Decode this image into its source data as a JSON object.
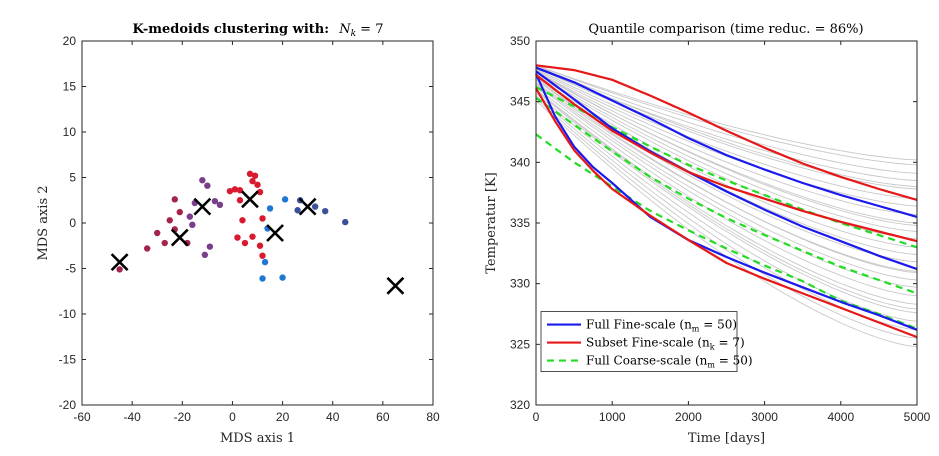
{
  "chart_data": [
    {
      "type": "scatter",
      "title": "K-medoids clustering with: N_k = 7",
      "title_text": "K-medoids clustering with:",
      "title_math": "N",
      "title_sub": "k",
      "title_tail": " = 7",
      "xlabel": "MDS axis 1",
      "ylabel": "MDS axis 2",
      "xlim": [
        -60,
        80
      ],
      "ylim": [
        -20,
        20
      ],
      "xticks": [
        -60,
        -40,
        -20,
        0,
        20,
        40,
        60,
        80
      ],
      "yticks": [
        -20,
        -15,
        -10,
        -5,
        0,
        5,
        10,
        15,
        20
      ],
      "grid": false,
      "colors": {
        "red": "#d91a2e",
        "crimson": "#a5244a",
        "purple": "#7a3d8c",
        "blue": "#1f77d4",
        "navy": "#3b4f9a",
        "darkmauve": "#8a3a6a",
        "marker_x": "#000000"
      },
      "points": [
        {
          "x": 7,
          "y": 5.4,
          "c": "red"
        },
        {
          "x": 9,
          "y": 5.2,
          "c": "red"
        },
        {
          "x": 8,
          "y": 4.6,
          "c": "red"
        },
        {
          "x": 10,
          "y": 4.2,
          "c": "red"
        },
        {
          "x": -1,
          "y": 3.5,
          "c": "red"
        },
        {
          "x": 1,
          "y": 3.7,
          "c": "red"
        },
        {
          "x": 3,
          "y": 3.6,
          "c": "red"
        },
        {
          "x": 11,
          "y": 3.4,
          "c": "red"
        },
        {
          "x": 3,
          "y": 2.5,
          "c": "red"
        },
        {
          "x": 4,
          "y": 0.3,
          "c": "red"
        },
        {
          "x": 12,
          "y": 0.5,
          "c": "red"
        },
        {
          "x": 2,
          "y": -1.6,
          "c": "red"
        },
        {
          "x": 5,
          "y": -2.2,
          "c": "red"
        },
        {
          "x": 8,
          "y": -1.5,
          "c": "red"
        },
        {
          "x": 11,
          "y": -2.5,
          "c": "red"
        },
        {
          "x": 12,
          "y": -3.6,
          "c": "red"
        },
        {
          "x": -23,
          "y": 2.6,
          "c": "crimson"
        },
        {
          "x": -21,
          "y": 1.2,
          "c": "crimson"
        },
        {
          "x": -25,
          "y": 0.3,
          "c": "crimson"
        },
        {
          "x": -23,
          "y": -0.7,
          "c": "crimson"
        },
        {
          "x": -30,
          "y": -1.1,
          "c": "crimson"
        },
        {
          "x": -27,
          "y": -2.2,
          "c": "crimson"
        },
        {
          "x": -34,
          "y": -2.8,
          "c": "crimson"
        },
        {
          "x": -18,
          "y": -2.2,
          "c": "crimson"
        },
        {
          "x": -45,
          "y": -5.1,
          "c": "crimson"
        },
        {
          "x": -12,
          "y": 4.7,
          "c": "purple"
        },
        {
          "x": -10,
          "y": 4.1,
          "c": "purple"
        },
        {
          "x": -7,
          "y": 2.4,
          "c": "purple"
        },
        {
          "x": -5,
          "y": 2.0,
          "c": "purple"
        },
        {
          "x": -15,
          "y": 2.2,
          "c": "purple"
        },
        {
          "x": -17,
          "y": 0.7,
          "c": "purple"
        },
        {
          "x": -9,
          "y": -2.6,
          "c": "purple"
        },
        {
          "x": -11,
          "y": -3.5,
          "c": "purple"
        },
        {
          "x": -16,
          "y": -0.2,
          "c": "purple"
        },
        {
          "x": 21,
          "y": 2.6,
          "c": "blue"
        },
        {
          "x": 15,
          "y": 1.6,
          "c": "blue"
        },
        {
          "x": 14,
          "y": -0.6,
          "c": "blue"
        },
        {
          "x": 13,
          "y": -4.3,
          "c": "blue"
        },
        {
          "x": 12,
          "y": -6.1,
          "c": "blue"
        },
        {
          "x": 20,
          "y": -6.0,
          "c": "blue"
        },
        {
          "x": 27,
          "y": 2.5,
          "c": "navy"
        },
        {
          "x": 26,
          "y": 1.4,
          "c": "navy"
        },
        {
          "x": 37,
          "y": 1.3,
          "c": "navy"
        },
        {
          "x": 45,
          "y": 0.1,
          "c": "navy"
        },
        {
          "x": 33,
          "y": 1.8,
          "c": "navy"
        }
      ],
      "medoids": [
        {
          "x": -45,
          "y": -4.3
        },
        {
          "x": -21,
          "y": -1.6
        },
        {
          "x": -12,
          "y": 1.8
        },
        {
          "x": 7,
          "y": 2.6
        },
        {
          "x": 17,
          "y": -1.1
        },
        {
          "x": 30,
          "y": 1.8
        },
        {
          "x": 65,
          "y": -6.9
        }
      ]
    },
    {
      "type": "line",
      "title": "Quantile comparison (time reduc. = 86%)",
      "xlabel": "Time [days]",
      "ylabel": "Temperatur [K]",
      "xlim": [
        0,
        5000
      ],
      "ylim": [
        320,
        350
      ],
      "xticks": [
        0,
        1000,
        2000,
        3000,
        4000,
        5000
      ],
      "yticks": [
        320,
        325,
        330,
        335,
        340,
        345,
        350
      ],
      "grid": false,
      "legend_placement": "bottom-left",
      "colors": {
        "background_curves": "#c8c8c8",
        "blue": "#1a1aee",
        "red": "#e61717",
        "green": "#22dd22"
      },
      "background_curves": [
        {
          "y0": 348.0,
          "y5000": 340.2
        },
        {
          "y0": 348.0,
          "y5000": 339.8
        },
        {
          "y0": 347.9,
          "y5000": 339.1
        },
        {
          "y0": 347.8,
          "y5000": 338.5
        },
        {
          "y0": 347.8,
          "y5000": 337.8
        },
        {
          "y0": 347.7,
          "y5000": 337.0
        },
        {
          "y0": 347.6,
          "y5000": 336.4
        },
        {
          "y0": 347.5,
          "y5000": 335.7
        },
        {
          "y0": 347.4,
          "y5000": 335.0
        },
        {
          "y0": 347.3,
          "y5000": 334.3
        },
        {
          "y0": 347.2,
          "y5000": 333.7
        },
        {
          "y0": 347.0,
          "y5000": 333.0
        },
        {
          "y0": 346.9,
          "y5000": 332.4
        },
        {
          "y0": 346.8,
          "y5000": 331.8
        },
        {
          "y0": 346.6,
          "y5000": 331.0
        },
        {
          "y0": 346.5,
          "y5000": 330.3
        },
        {
          "y0": 346.4,
          "y5000": 329.7
        },
        {
          "y0": 346.2,
          "y5000": 329.0
        },
        {
          "y0": 346.0,
          "y5000": 328.3
        },
        {
          "y0": 345.9,
          "y5000": 327.6
        },
        {
          "y0": 345.7,
          "y5000": 326.9
        },
        {
          "y0": 345.5,
          "y5000": 326.2
        },
        {
          "y0": 345.3,
          "y5000": 325.5
        },
        {
          "y0": 345.1,
          "y5000": 324.8
        },
        {
          "y0": 348.0,
          "y5000": 338.0
        },
        {
          "y0": 347.5,
          "y5000": 334.8
        },
        {
          "y0": 346.8,
          "y5000": 330.9
        },
        {
          "y0": 346.0,
          "y5000": 327.9
        }
      ],
      "series": [
        {
          "name": "Full Fine-scale (n_m = 50)",
          "style": "solid",
          "color": "blue",
          "curves": [
            [
              [
                0,
                347.8
              ],
              [
                500,
                346.6
              ],
              [
                1000,
                345.1
              ],
              [
                1500,
                343.6
              ],
              [
                2000,
                342.0
              ],
              [
                2500,
                340.6
              ],
              [
                3000,
                339.4
              ],
              [
                3500,
                338.3
              ],
              [
                4000,
                337.3
              ],
              [
                4500,
                336.4
              ],
              [
                5000,
                335.5
              ]
            ],
            [
              [
                0,
                347.5
              ],
              [
                500,
                345.2
              ],
              [
                1000,
                342.8
              ],
              [
                1500,
                340.9
              ],
              [
                2000,
                339.2
              ],
              [
                2500,
                337.6
              ],
              [
                3000,
                336.1
              ],
              [
                3500,
                334.7
              ],
              [
                4000,
                333.5
              ],
              [
                4500,
                332.3
              ],
              [
                5000,
                331.2
              ]
            ],
            [
              [
                0,
                347.3
              ],
              [
                250,
                343.8
              ],
              [
                500,
                341.3
              ],
              [
                750,
                339.6
              ],
              [
                1000,
                338.3
              ],
              [
                1500,
                335.5
              ],
              [
                2000,
                333.6
              ],
              [
                2500,
                332.2
              ],
              [
                3000,
                330.9
              ],
              [
                3500,
                329.7
              ],
              [
                4000,
                328.5
              ],
              [
                4500,
                327.4
              ],
              [
                5000,
                326.2
              ]
            ]
          ]
        },
        {
          "name": "Subset Fine-scale (n_k = 7)",
          "style": "solid",
          "color": "red",
          "curves": [
            [
              [
                0,
                348.0
              ],
              [
                500,
                347.6
              ],
              [
                1000,
                346.8
              ],
              [
                1500,
                345.5
              ],
              [
                2000,
                344.1
              ],
              [
                2500,
                342.6
              ],
              [
                3000,
                341.2
              ],
              [
                3500,
                339.9
              ],
              [
                4000,
                338.8
              ],
              [
                4500,
                337.8
              ],
              [
                5000,
                336.9
              ]
            ],
            [
              [
                0,
                347.2
              ],
              [
                500,
                344.8
              ],
              [
                1000,
                342.6
              ],
              [
                1500,
                340.8
              ],
              [
                2000,
                339.2
              ],
              [
                2500,
                338.0
              ],
              [
                3000,
                337.0
              ],
              [
                3500,
                336.0
              ],
              [
                4000,
                335.1
              ],
              [
                4500,
                334.3
              ],
              [
                5000,
                333.5
              ]
            ],
            [
              [
                0,
                346.1
              ],
              [
                250,
                343.4
              ],
              [
                500,
                341.0
              ],
              [
                750,
                339.3
              ],
              [
                1000,
                337.8
              ],
              [
                1500,
                335.6
              ],
              [
                2000,
                333.6
              ],
              [
                2500,
                331.7
              ],
              [
                3000,
                330.4
              ],
              [
                3500,
                329.2
              ],
              [
                4000,
                328.0
              ],
              [
                4500,
                326.8
              ],
              [
                5000,
                325.6
              ]
            ]
          ]
        },
        {
          "name": "Full Coarse-scale (n_m = 50)",
          "style": "dashed",
          "color": "green",
          "curves": [
            [
              [
                0,
                346.2
              ],
              [
                500,
                344.6
              ],
              [
                1000,
                342.9
              ],
              [
                1500,
                341.3
              ],
              [
                2000,
                339.8
              ],
              [
                2500,
                338.5
              ],
              [
                3000,
                337.3
              ],
              [
                3500,
                336.1
              ],
              [
                4000,
                335.0
              ],
              [
                4500,
                334.0
              ],
              [
                5000,
                333.0
              ]
            ],
            [
              [
                0,
                345.3
              ],
              [
                500,
                343.1
              ],
              [
                1000,
                340.9
              ],
              [
                1500,
                338.8
              ],
              [
                2000,
                337.0
              ],
              [
                2500,
                335.4
              ],
              [
                3000,
                334.0
              ],
              [
                3500,
                332.7
              ],
              [
                4000,
                331.4
              ],
              [
                4500,
                330.3
              ],
              [
                5000,
                329.2
              ]
            ],
            [
              [
                0,
                342.3
              ],
              [
                500,
                340.0
              ],
              [
                1000,
                338.0
              ],
              [
                1500,
                336.0
              ],
              [
                2000,
                334.4
              ],
              [
                2500,
                332.9
              ],
              [
                3000,
                331.5
              ],
              [
                3500,
                330.2
              ],
              [
                4000,
                328.6
              ],
              [
                4500,
                327.5
              ],
              [
                5000,
                326.3
              ]
            ]
          ]
        }
      ],
      "legend": [
        {
          "text": "Full Fine-scale (n",
          "sub": "m",
          "tail": " = 50)",
          "color": "blue",
          "style": "solid"
        },
        {
          "text": "Subset Fine-scale (n",
          "sub": "k",
          "tail": " = 7)",
          "color": "red",
          "style": "solid"
        },
        {
          "text": "Full Coarse-scale (n",
          "sub": "m",
          "tail": " = 50)",
          "color": "green",
          "style": "dashed"
        }
      ]
    }
  ]
}
